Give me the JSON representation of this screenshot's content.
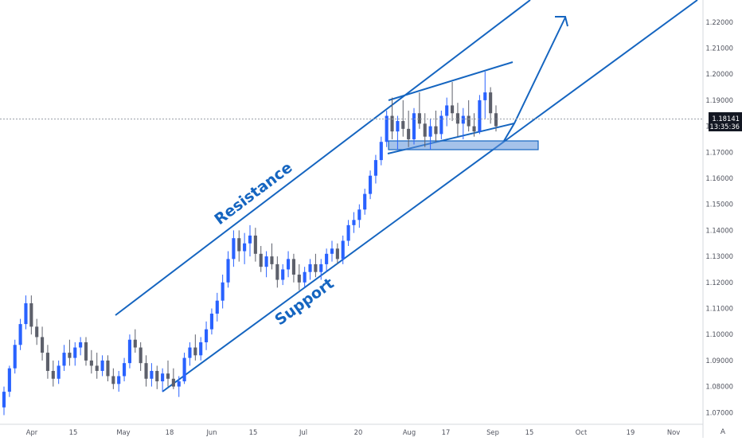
{
  "chart_data": {
    "type": "candlestick",
    "title": "",
    "xlabel": "",
    "ylabel": "",
    "ylim": [
      1.0655,
      1.2285
    ],
    "x_tick_labels": [
      "Apr",
      "15",
      "May",
      "18",
      "Jun",
      "15",
      "Jul",
      "20",
      "Aug",
      "17",
      "Sep",
      "15",
      "Oct",
      "19",
      "Nov"
    ],
    "y_tick_labels": [
      "1.07000",
      "1.08000",
      "1.09000",
      "1.10000",
      "1.11000",
      "1.12000",
      "1.13000",
      "1.14000",
      "1.15000",
      "1.16000",
      "1.17000",
      "1.18000",
      "1.19000",
      "1.20000",
      "1.21000",
      "1.22000"
    ],
    "y_tick_values": [
      1.07,
      1.08,
      1.09,
      1.1,
      1.11,
      1.12,
      1.13,
      1.14,
      1.15,
      1.16,
      1.17,
      1.18,
      1.19,
      1.2,
      1.21,
      1.22
    ],
    "current_price": "1.18141",
    "current_price_value": 1.18141,
    "countdown": "13:35:36",
    "scale_mode": "A",
    "annotations": [
      {
        "text": "Resistance",
        "type": "trendline"
      },
      {
        "text": "Support",
        "type": "trendline"
      },
      {
        "text": "",
        "type": "wedge"
      },
      {
        "text": "",
        "type": "demand-zone",
        "range": [
          1.1705,
          1.1725
        ]
      },
      {
        "text": "",
        "type": "projection-arrow"
      }
    ],
    "series": [
      {
        "values": [
          [
            1.072,
            1.08,
            1.069,
            1.078
          ],
          [
            1.078,
            1.088,
            1.076,
            1.087
          ],
          [
            1.087,
            1.098,
            1.085,
            1.096
          ],
          [
            1.096,
            1.106,
            1.094,
            1.104
          ],
          [
            1.104,
            1.115,
            1.102,
            1.112
          ],
          [
            1.112,
            1.115,
            1.1,
            1.103
          ],
          [
            1.103,
            1.106,
            1.096,
            1.099
          ],
          [
            1.099,
            1.103,
            1.09,
            1.093
          ],
          [
            1.093,
            1.096,
            1.083,
            1.086
          ],
          [
            1.086,
            1.09,
            1.08,
            1.083
          ],
          [
            1.083,
            1.09,
            1.081,
            1.088
          ],
          [
            1.088,
            1.096,
            1.086,
            1.093
          ],
          [
            1.093,
            1.098,
            1.088,
            1.091
          ],
          [
            1.091,
            1.097,
            1.088,
            1.095
          ],
          [
            1.095,
            1.099,
            1.092,
            1.097
          ],
          [
            1.097,
            1.099,
            1.088,
            1.09
          ],
          [
            1.09,
            1.094,
            1.085,
            1.088
          ],
          [
            1.088,
            1.093,
            1.083,
            1.086
          ],
          [
            1.086,
            1.092,
            1.084,
            1.09
          ],
          [
            1.09,
            1.092,
            1.082,
            1.084
          ],
          [
            1.084,
            1.087,
            1.079,
            1.081
          ],
          [
            1.081,
            1.086,
            1.078,
            1.084
          ],
          [
            1.084,
            1.091,
            1.082,
            1.089
          ],
          [
            1.089,
            1.1,
            1.087,
            1.098
          ],
          [
            1.098,
            1.102,
            1.093,
            1.095
          ],
          [
            1.095,
            1.097,
            1.086,
            1.089
          ],
          [
            1.089,
            1.092,
            1.08,
            1.083
          ],
          [
            1.083,
            1.089,
            1.08,
            1.086
          ],
          [
            1.086,
            1.088,
            1.079,
            1.082
          ],
          [
            1.082,
            1.087,
            1.078,
            1.085
          ],
          [
            1.085,
            1.09,
            1.08,
            1.083
          ],
          [
            1.083,
            1.087,
            1.079,
            1.08
          ],
          [
            1.08,
            1.084,
            1.076,
            1.082
          ],
          [
            1.082,
            1.093,
            1.081,
            1.091
          ],
          [
            1.091,
            1.097,
            1.088,
            1.095
          ],
          [
            1.095,
            1.1,
            1.09,
            1.092
          ],
          [
            1.092,
            1.099,
            1.09,
            1.097
          ],
          [
            1.097,
            1.105,
            1.094,
            1.102
          ],
          [
            1.102,
            1.11,
            1.1,
            1.108
          ],
          [
            1.108,
            1.116,
            1.105,
            1.113
          ],
          [
            1.113,
            1.123,
            1.11,
            1.12
          ],
          [
            1.12,
            1.132,
            1.118,
            1.129
          ],
          [
            1.129,
            1.14,
            1.126,
            1.137
          ],
          [
            1.137,
            1.14,
            1.128,
            1.132
          ],
          [
            1.132,
            1.139,
            1.127,
            1.135
          ],
          [
            1.135,
            1.142,
            1.13,
            1.138
          ],
          [
            1.138,
            1.141,
            1.128,
            1.131
          ],
          [
            1.131,
            1.134,
            1.124,
            1.126
          ],
          [
            1.126,
            1.132,
            1.122,
            1.13
          ],
          [
            1.13,
            1.135,
            1.125,
            1.127
          ],
          [
            1.127,
            1.13,
            1.118,
            1.121
          ],
          [
            1.121,
            1.127,
            1.119,
            1.125
          ],
          [
            1.125,
            1.132,
            1.122,
            1.129
          ],
          [
            1.129,
            1.131,
            1.12,
            1.123
          ],
          [
            1.123,
            1.127,
            1.117,
            1.12
          ],
          [
            1.12,
            1.126,
            1.118,
            1.124
          ],
          [
            1.124,
            1.129,
            1.121,
            1.127
          ],
          [
            1.127,
            1.131,
            1.122,
            1.124
          ],
          [
            1.124,
            1.129,
            1.121,
            1.127
          ],
          [
            1.127,
            1.133,
            1.124,
            1.131
          ],
          [
            1.131,
            1.136,
            1.128,
            1.133
          ],
          [
            1.133,
            1.135,
            1.127,
            1.129
          ],
          [
            1.129,
            1.138,
            1.127,
            1.136
          ],
          [
            1.136,
            1.144,
            1.134,
            1.142
          ],
          [
            1.142,
            1.147,
            1.139,
            1.144
          ],
          [
            1.144,
            1.15,
            1.141,
            1.148
          ],
          [
            1.148,
            1.156,
            1.146,
            1.154
          ],
          [
            1.154,
            1.163,
            1.152,
            1.161
          ],
          [
            1.161,
            1.169,
            1.158,
            1.167
          ],
          [
            1.167,
            1.176,
            1.165,
            1.174
          ],
          [
            1.174,
            1.186,
            1.172,
            1.184
          ],
          [
            1.184,
            1.191,
            1.175,
            1.178
          ],
          [
            1.178,
            1.184,
            1.171,
            1.182
          ],
          [
            1.182,
            1.19,
            1.176,
            1.179
          ],
          [
            1.179,
            1.186,
            1.172,
            1.175
          ],
          [
            1.175,
            1.187,
            1.173,
            1.185
          ],
          [
            1.185,
            1.193,
            1.179,
            1.181
          ],
          [
            1.181,
            1.185,
            1.172,
            1.176
          ],
          [
            1.176,
            1.183,
            1.171,
            1.18
          ],
          [
            1.18,
            1.186,
            1.174,
            1.177
          ],
          [
            1.177,
            1.186,
            1.175,
            1.184
          ],
          [
            1.184,
            1.191,
            1.18,
            1.188
          ],
          [
            1.188,
            1.197,
            1.182,
            1.185
          ],
          [
            1.185,
            1.189,
            1.176,
            1.181
          ],
          [
            1.181,
            1.187,
            1.175,
            1.184
          ],
          [
            1.184,
            1.19,
            1.178,
            1.18
          ],
          [
            1.18,
            1.185,
            1.176,
            1.178
          ],
          [
            1.178,
            1.192,
            1.177,
            1.19
          ],
          [
            1.19,
            1.201,
            1.183,
            1.193
          ],
          [
            1.193,
            1.195,
            1.181,
            1.185
          ],
          [
            1.185,
            1.188,
            1.178,
            1.18
          ]
        ]
      }
    ]
  }
}
